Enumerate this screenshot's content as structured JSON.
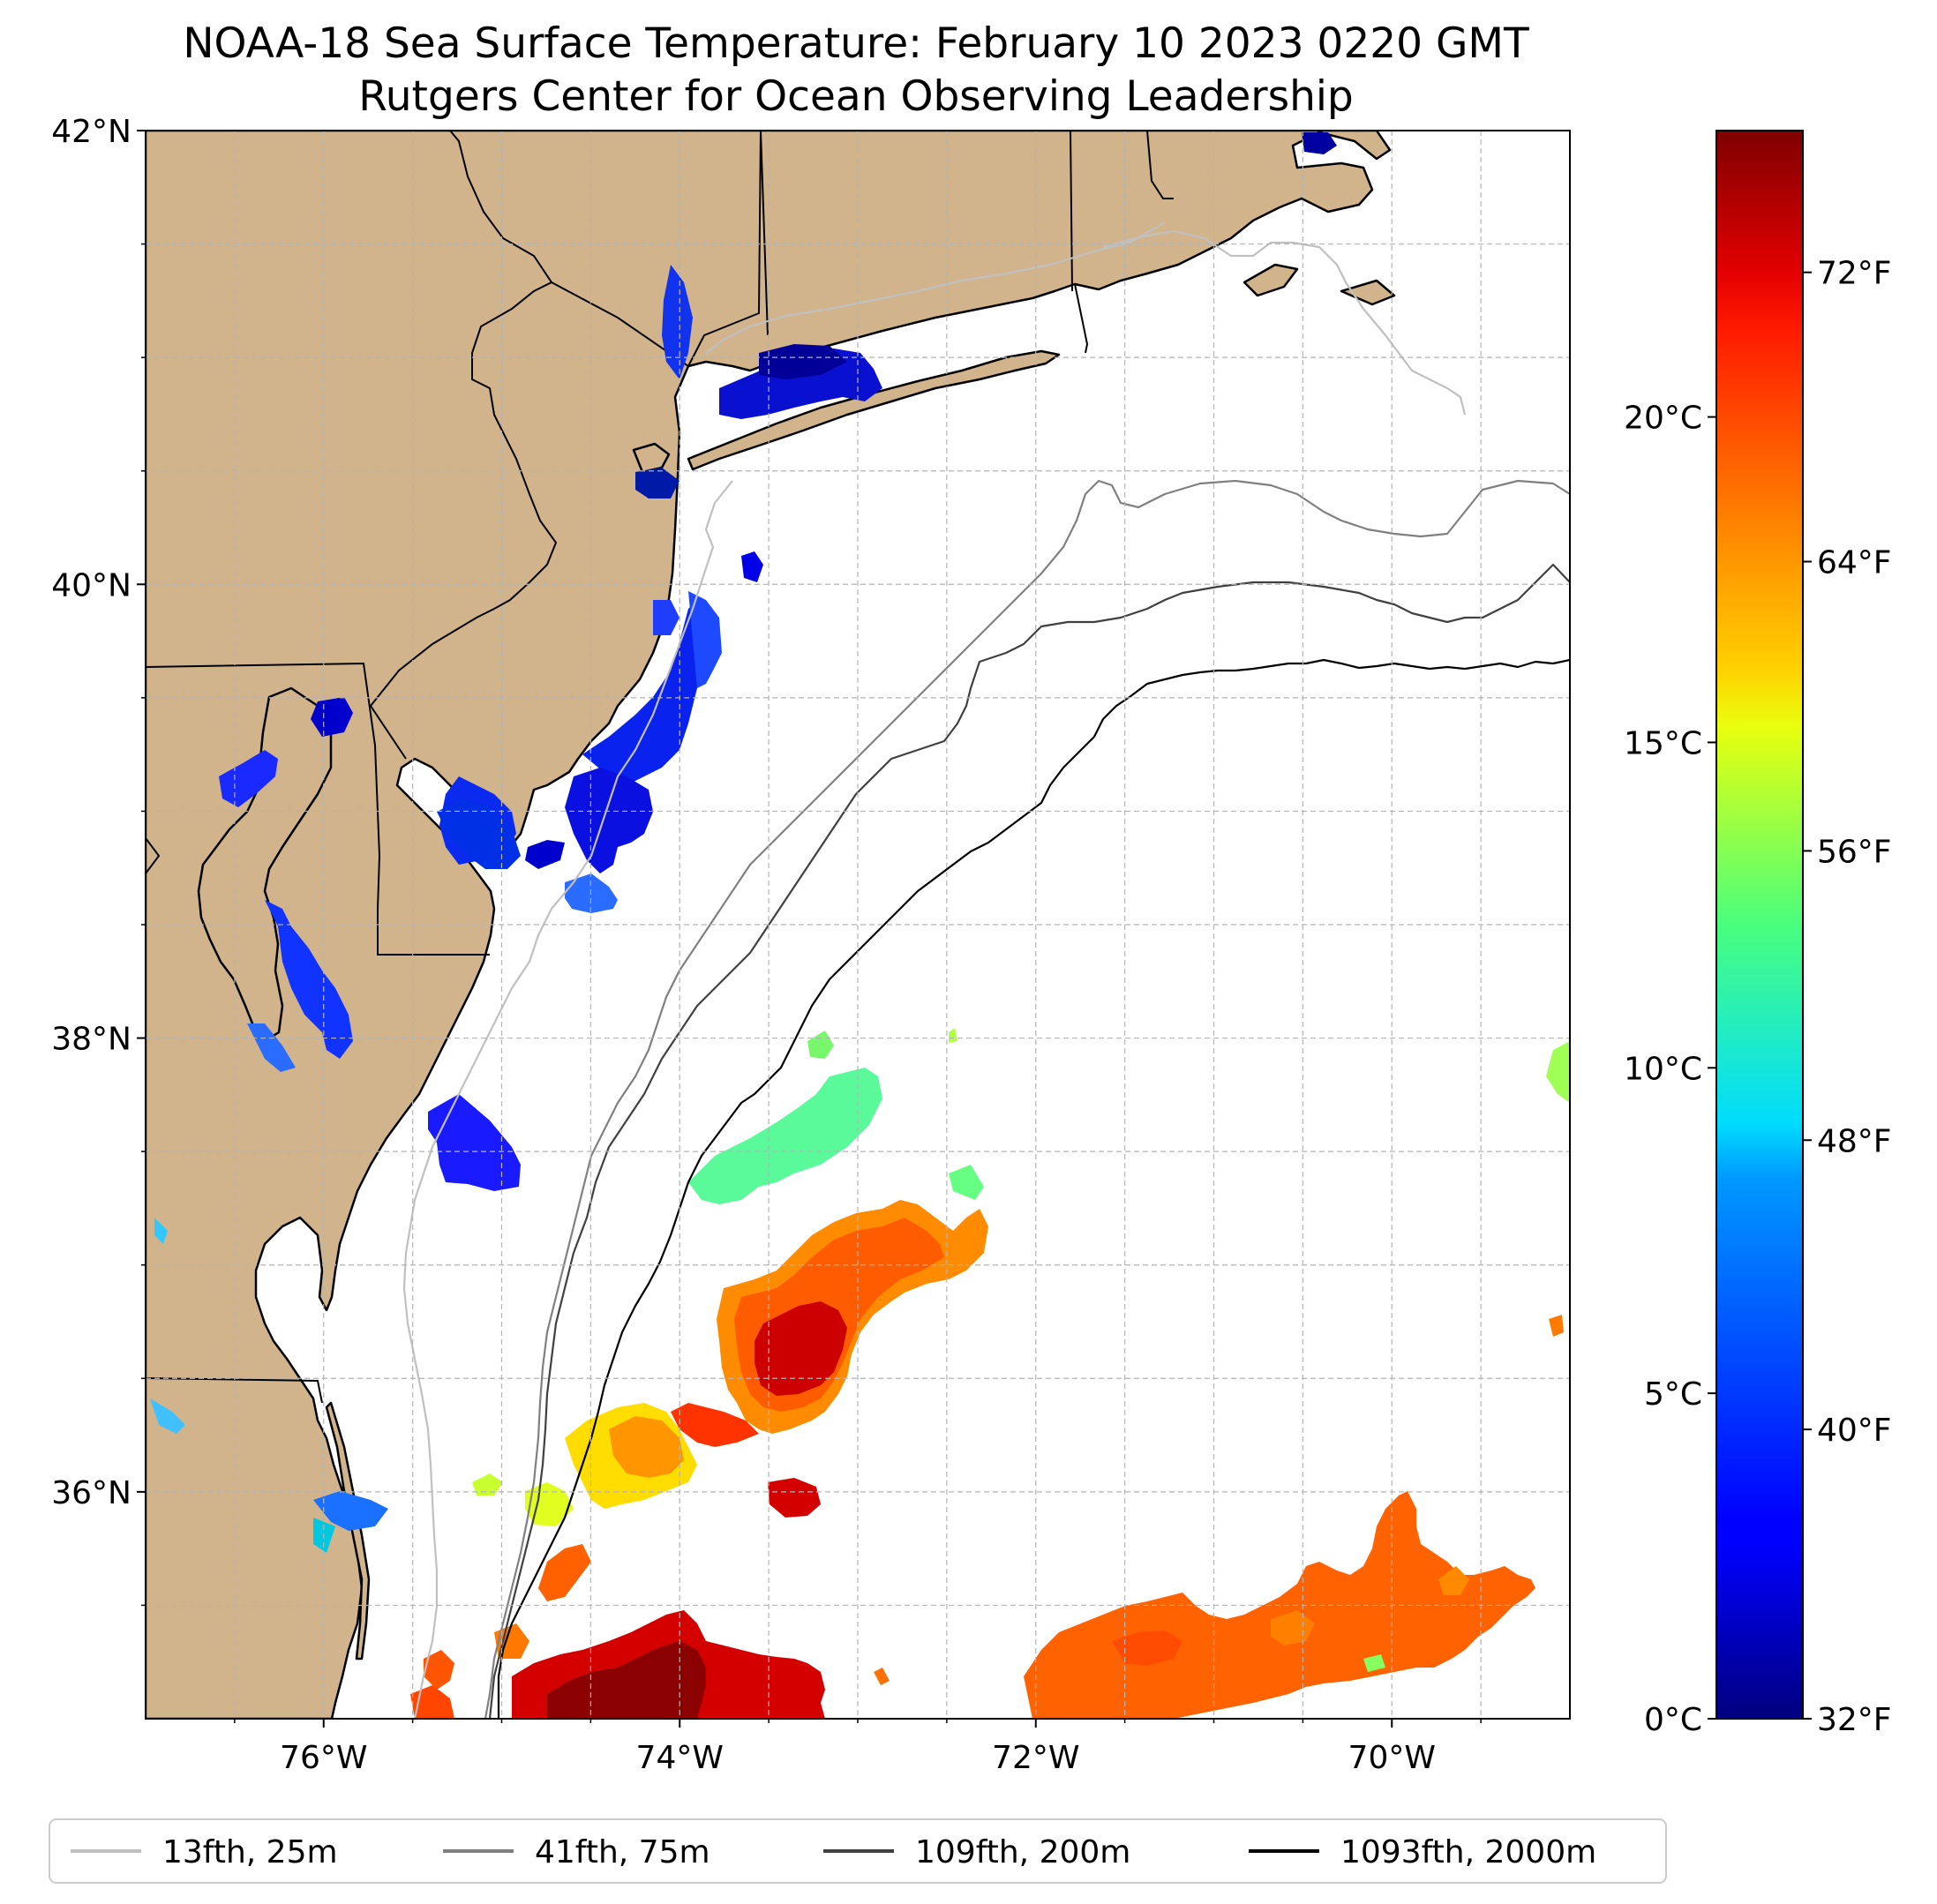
{
  "title": {
    "line1": "NOAA-18 Sea Surface Temperature: February 10 2023 0220 GMT",
    "line2": "Rutgers Center for Ocean Observing Leadership"
  },
  "map": {
    "lon_range": [
      -77,
      -69
    ],
    "lat_range": [
      35,
      42
    ],
    "lon_ticks": [
      {
        "value": -76,
        "label": "76°W"
      },
      {
        "value": -74,
        "label": "74°W"
      },
      {
        "value": -72,
        "label": "72°W"
      },
      {
        "value": -70,
        "label": "70°W"
      }
    ],
    "lat_ticks": [
      {
        "value": 42,
        "label": "42°N"
      },
      {
        "value": 40,
        "label": "40°N"
      },
      {
        "value": 38,
        "label": "38°N"
      },
      {
        "value": 36,
        "label": "36°N"
      }
    ],
    "gridlines": true,
    "land_color": "#d2b48c",
    "ocean_color": "#ffffff"
  },
  "colorbar": {
    "colormap": "jet",
    "range_c": [
      0,
      24.4
    ],
    "celsius_ticks": [
      {
        "value": 0,
        "label": "0°C"
      },
      {
        "value": 5,
        "label": "5°C"
      },
      {
        "value": 10,
        "label": "10°C"
      },
      {
        "value": 15,
        "label": "15°C"
      },
      {
        "value": 20,
        "label": "20°C"
      }
    ],
    "fahrenheit_ticks": [
      {
        "value": 32,
        "label": "32°F"
      },
      {
        "value": 40,
        "label": "40°F"
      },
      {
        "value": 48,
        "label": "48°F"
      },
      {
        "value": 56,
        "label": "56°F"
      },
      {
        "value": 64,
        "label": "64°F"
      },
      {
        "value": 72,
        "label": "72°F"
      }
    ]
  },
  "legend": {
    "placement": "bottom",
    "items": [
      {
        "label": "13fth, 25m",
        "color": "#c0c0c0"
      },
      {
        "label": "41fth, 75m",
        "color": "#808080"
      },
      {
        "label": "109fth, 200m",
        "color": "#404040"
      },
      {
        "label": "1093fth, 2000m",
        "color": "#000000"
      }
    ]
  }
}
